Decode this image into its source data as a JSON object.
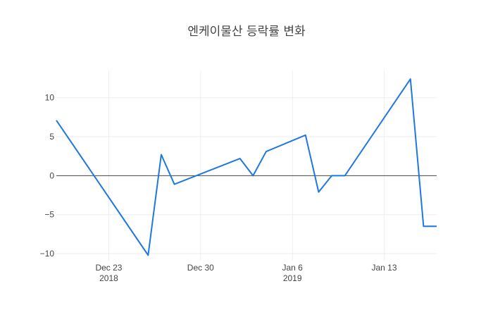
{
  "chart_data": {
    "type": "line",
    "title": "엔케이물산 등락률 변화",
    "xlabel": "",
    "ylabel": "",
    "x_tick_labels": [
      {
        "date": "2018-12-23",
        "line1": "Dec 23",
        "line2": "2018"
      },
      {
        "date": "2018-12-30",
        "line1": "Dec 30",
        "line2": ""
      },
      {
        "date": "2019-01-06",
        "line1": "Jan 6",
        "line2": "2019"
      },
      {
        "date": "2019-01-13",
        "line1": "Jan 13",
        "line2": ""
      }
    ],
    "y_ticks": [
      10,
      5,
      0,
      -5,
      -10
    ],
    "y_tick_labels": [
      "10",
      "5",
      "0",
      "−5",
      "−10"
    ],
    "xlim": [
      "2018-12-19",
      "2019-01-17"
    ],
    "ylim": [
      -10.9,
      13.5
    ],
    "grid": true,
    "series": [
      {
        "color": "#1f77e0",
        "x": [
          "2018-12-19",
          "2018-12-26",
          "2018-12-27",
          "2018-12-28",
          "2019-01-02",
          "2019-01-03",
          "2019-01-04",
          "2019-01-07",
          "2019-01-08",
          "2019-01-09",
          "2019-01-10",
          "2019-01-15",
          "2019-01-16",
          "2019-01-17"
        ],
        "y": [
          7.1,
          -10.2,
          2.7,
          -1.1,
          2.2,
          0.0,
          3.1,
          5.2,
          -2.1,
          0.0,
          0.0,
          12.4,
          -6.5,
          -6.5
        ]
      }
    ]
  }
}
